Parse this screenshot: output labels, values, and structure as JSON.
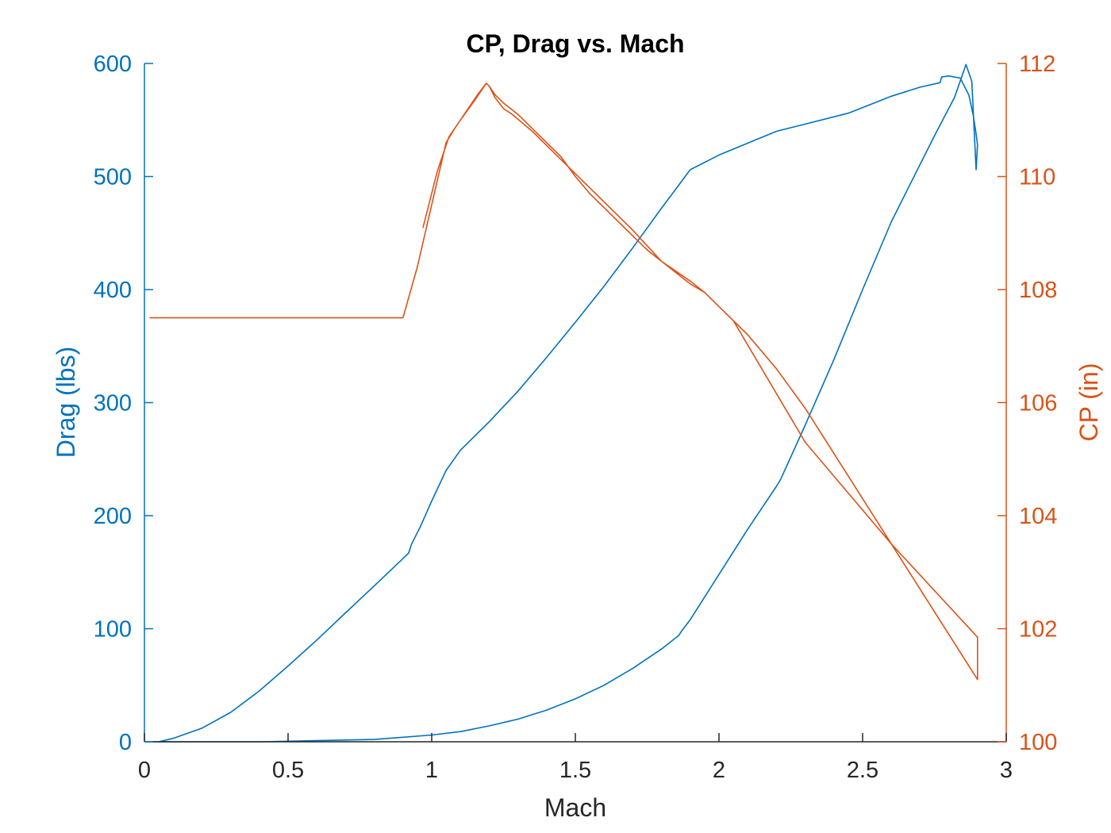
{
  "chart_data": {
    "type": "line",
    "title": "CP, Drag vs. Mach",
    "xlabel": "Mach",
    "ylabel_left": "Drag (lbs)",
    "ylabel_right": "CP (in)",
    "xlim": [
      0,
      3
    ],
    "ylim_left": [
      0,
      600
    ],
    "ylim_right": [
      100,
      112
    ],
    "xticks": [
      "0",
      "0.5",
      "1",
      "1.5",
      "2",
      "2.5",
      "3"
    ],
    "yticks_left": [
      "0",
      "100",
      "200",
      "300",
      "400",
      "500",
      "600"
    ],
    "yticks_right": [
      "100",
      "102",
      "104",
      "106",
      "108",
      "110",
      "112"
    ],
    "grid": false,
    "colors": {
      "drag": "#0072BD",
      "cp": "#D95319",
      "axis": "#262626"
    },
    "series": [
      {
        "axis": "left",
        "color": "#0072BD",
        "x": [
          0.05,
          0.1,
          0.2,
          0.3,
          0.4,
          0.5,
          0.6,
          0.7,
          0.8,
          0.9,
          0.92,
          0.93,
          0.96,
          1.0,
          1.05,
          1.1,
          1.2,
          1.3,
          1.4,
          1.5,
          1.6,
          1.7,
          1.8,
          1.9,
          2.0,
          2.2,
          2.45,
          2.6,
          2.7,
          2.77,
          2.775,
          2.8,
          2.84,
          2.87,
          2.885,
          2.895,
          2.9,
          2.895,
          2.88,
          2.86,
          2.82,
          2.75,
          2.6,
          2.5,
          2.4,
          2.3,
          2.22,
          2.21,
          2.2,
          2.1,
          2.0,
          1.9,
          1.87,
          1.86,
          1.8,
          1.7,
          1.6,
          1.5,
          1.4,
          1.3,
          1.2,
          1.1,
          1.0,
          0.9,
          0.8,
          0.6,
          0.4,
          0.2,
          0.1,
          0.03
        ],
        "values": [
          0,
          3,
          12,
          26,
          45,
          67,
          90,
          114,
          138,
          162,
          167,
          175,
          190,
          213,
          240,
          258,
          283,
          310,
          340,
          371,
          403,
          437,
          472,
          506,
          519,
          540,
          556,
          571,
          579,
          583,
          588,
          589,
          587,
          572,
          554,
          538,
          528,
          506,
          584,
          599,
          570,
          536,
          460,
          400,
          338,
          280,
          235,
          230,
          226,
          188,
          148,
          108,
          98,
          94,
          82,
          65,
          50,
          38,
          28,
          20,
          14,
          9,
          6,
          4,
          2,
          1,
          0,
          0,
          0,
          0
        ]
      },
      {
        "axis": "right",
        "color": "#D95319",
        "x": [
          0.02,
          0.9,
          0.95,
          1.0,
          1.05,
          1.08,
          1.12,
          1.16,
          1.19,
          1.2,
          1.22,
          1.25,
          1.3,
          1.35,
          1.4,
          1.45,
          1.5,
          1.55,
          1.6,
          1.65,
          1.7,
          1.75,
          1.8,
          1.85,
          1.9,
          1.95,
          2.0,
          2.1,
          2.2,
          2.3,
          2.4,
          2.5,
          2.6,
          2.7,
          2.8,
          2.9,
          2.9,
          2.6,
          2.3,
          2.05,
          1.95,
          1.9,
          1.8,
          1.7,
          1.6,
          1.5,
          1.42,
          1.35,
          1.28,
          1.25,
          1.22,
          1.2,
          1.19,
          1.15,
          1.1,
          1.06,
          1.02,
          0.97
        ],
        "values": [
          107.5,
          107.5,
          108.4,
          109.5,
          110.6,
          110.85,
          111.15,
          111.45,
          111.65,
          111.6,
          111.45,
          111.3,
          111.1,
          110.85,
          110.6,
          110.35,
          110.0,
          109.7,
          109.45,
          109.2,
          108.95,
          108.7,
          108.5,
          108.3,
          108.1,
          107.95,
          107.7,
          107.2,
          106.6,
          105.9,
          105.1,
          104.3,
          103.5,
          102.7,
          101.9,
          101.1,
          101.85,
          103.5,
          105.3,
          107.45,
          107.95,
          108.15,
          108.5,
          109.05,
          109.55,
          110.05,
          110.45,
          110.8,
          111.1,
          111.2,
          111.4,
          111.6,
          111.65,
          111.35,
          111.0,
          110.7,
          110.1,
          109.1
        ]
      }
    ]
  }
}
